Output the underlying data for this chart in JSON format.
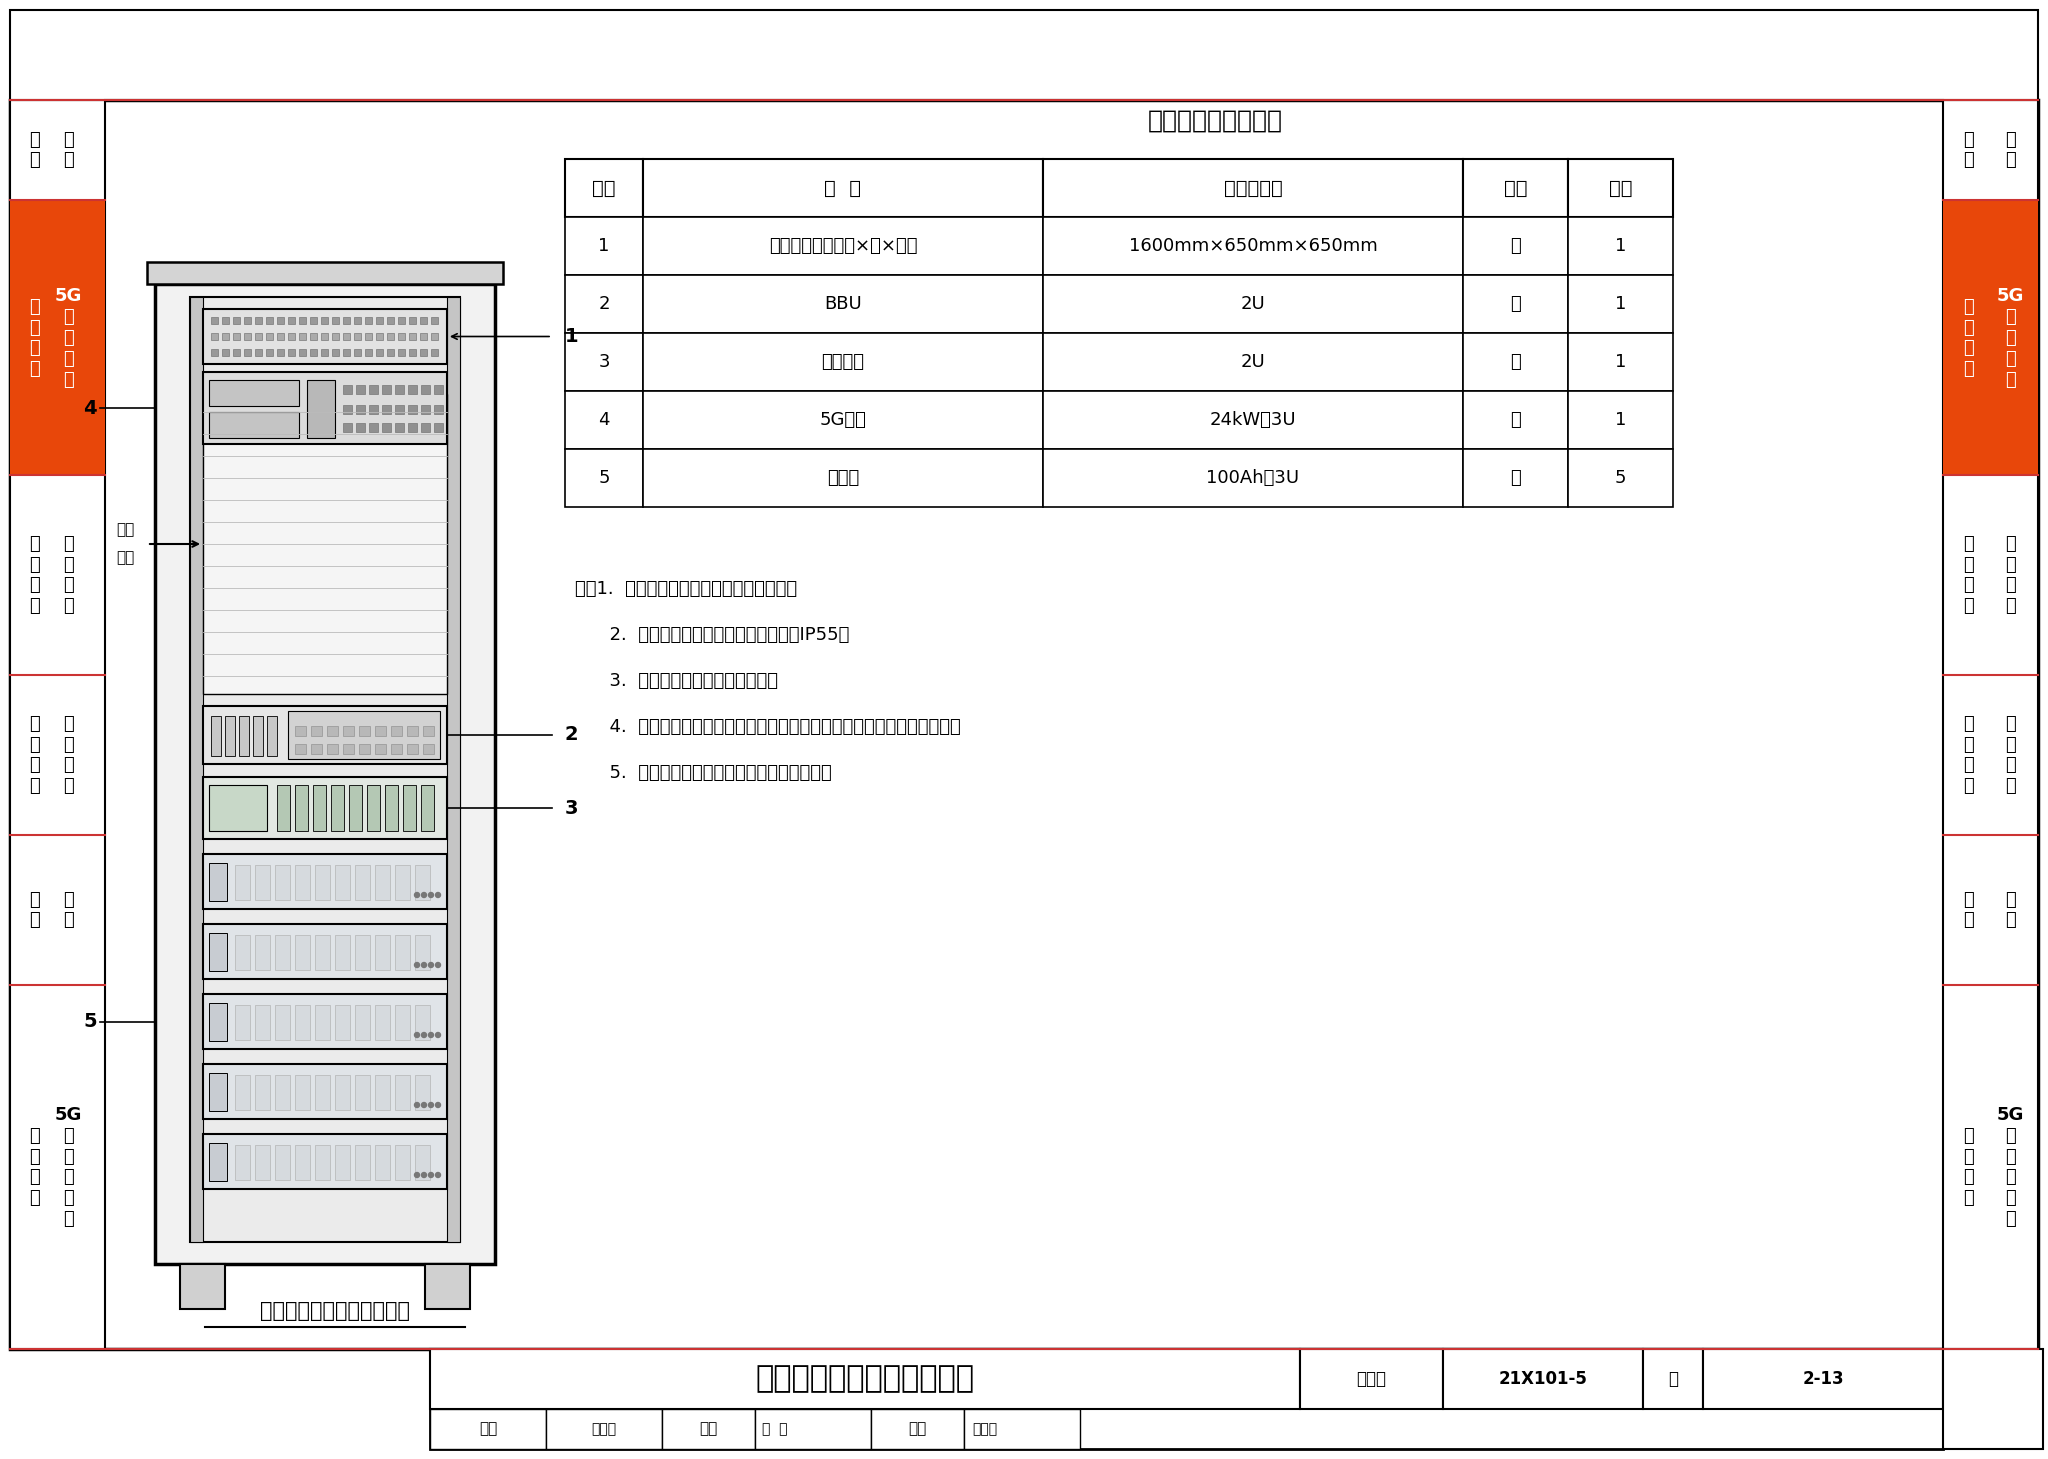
{
  "title": "室外通信机柜设备布置示例",
  "table_title": "室外通信机柜设备表",
  "table_headers": [
    "编号",
    "名  称",
    "型号及规格",
    "单位",
    "数量"
  ],
  "table_rows": [
    [
      "1",
      "室外通信机柜（高×宽×深）",
      "1600mm×650mm×650mm",
      "个",
      "1"
    ],
    [
      "2",
      "BBU",
      "2U",
      "台",
      "1"
    ],
    [
      "3",
      "传输设备",
      "2U",
      "台",
      "1"
    ],
    [
      "4",
      "5G电源",
      "24kW、3U",
      "台",
      "1"
    ],
    [
      "5",
      "锂电池",
      "100Ah、3U",
      "个",
      "5"
    ]
  ],
  "notes": [
    "注：1.  室外通信机柜采用下进线、下出线。",
    "      2.  室外通信机柜的防护等级应不小于IP55。",
    "      3.  机柜可附加太阳能控制模块。",
    "      4.  示例中设备规格仅供参考，在工程设计中应根据系统要求进行选型。",
    "      5.  扩展空间可以按项目需要增加相关设备。"
  ],
  "bottom_title": "室外通信机柜设备布置示例",
  "figure_num": "21X101-5",
  "page": "2-13",
  "bg_color": "#ffffff",
  "border_color": "#000000",
  "orange_color": "#e8470a",
  "red_line_color": "#cc3333",
  "diagram_caption": "室外通信机柜设备布置示例",
  "review_text": "审核",
  "check_text": "校对",
  "design_text": "设计",
  "reviewer": "王衍桥",
  "checker": "郝威",
  "designer": "张晓鸣",
  "figure_label": "图集号",
  "page_label": "页",
  "expand_label1": "扩展",
  "expand_label2": "空间",
  "left_col1_labels": [
    "符\n术",
    "号\n语"
  ],
  "left_col2_labels_orange": [
    "系\n统\n设\n计",
    "5G\n网\n络\n覆\n盖"
  ],
  "left_col3_labels": [
    "设\n施\n设\n计",
    "建\n筑\n配\n套"
  ],
  "left_col4_labels": [
    "设\n施\n施\n工",
    "建\n筑\n配\n套"
  ],
  "left_col5_labels": [
    "示\n例",
    "工\n程"
  ],
  "left_col6_labels": [
    "边\n缘\n计\n算",
    "5G\n网\n络\n多\n接\n入"
  ],
  "item_numbers": [
    "1",
    "2",
    "3",
    "4",
    "5"
  ]
}
